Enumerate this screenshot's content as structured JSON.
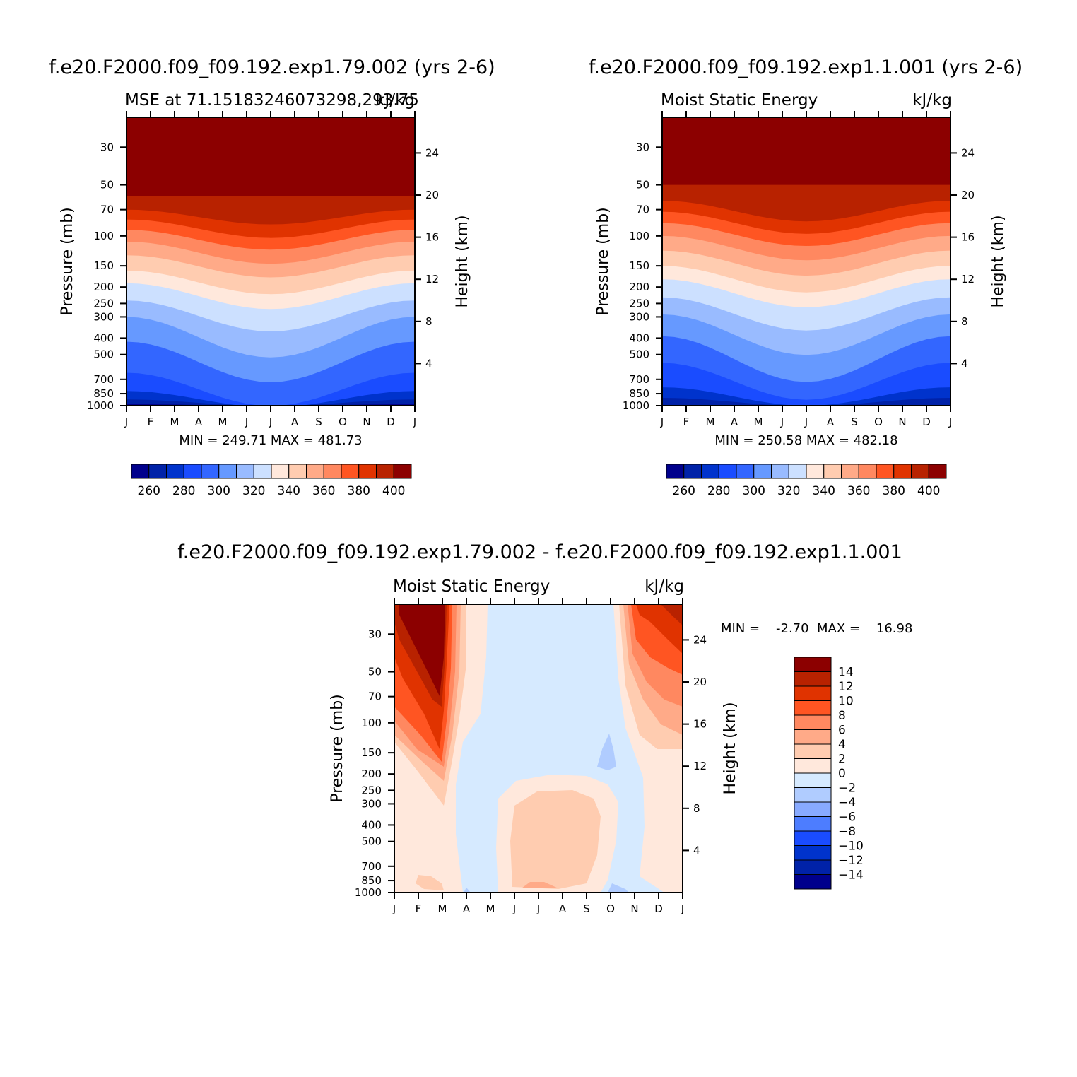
{
  "chart_data": [
    {
      "type": "contour",
      "id": "p1",
      "title": "f.e20.F2000.f09_f09.192.exp1.79.002 (yrs 2-6)",
      "subtitle_left": "MSE at 71.15183246073298,293.75",
      "subtitle_right": "kJ/kg",
      "xlabel": "",
      "ylabel": "Pressure (mb)",
      "ylabel_right": "Height (km)",
      "x_ticks": [
        "J",
        "F",
        "M",
        "A",
        "M",
        "J",
        "J",
        "A",
        "S",
        "O",
        "N",
        "D",
        "J"
      ],
      "y_ticks": [
        30,
        50,
        70,
        100,
        150,
        200,
        250,
        300,
        400,
        500,
        700,
        850,
        1000
      ],
      "y_right_ticks": [
        24,
        20,
        16,
        12,
        8,
        4
      ],
      "ylim": [
        1000,
        20
      ],
      "min_max_text": "MIN = 249.71  MAX = 481.73",
      "colorbar": {
        "orientation": "horizontal",
        "levels": [
          255,
          260,
          265,
          270,
          275,
          280,
          285,
          290,
          295,
          300,
          305,
          310,
          315,
          320,
          325,
          330,
          335,
          340,
          345,
          350,
          355,
          360,
          365,
          370,
          375,
          380,
          385,
          390,
          395,
          400,
          405
        ],
        "labels": [
          "260",
          "280",
          "300",
          "320",
          "340",
          "360",
          "380",
          "400"
        ],
        "colors": [
          "#00008c",
          "#0022a8",
          "#0033cc",
          "#1a4cff",
          "#3366ff",
          "#6699ff",
          "#99bbff",
          "#cce0ff",
          "#ffe8dc",
          "#ffccb0",
          "#ffaa88",
          "#ff8860",
          "#ff5522",
          "#e03300",
          "#b82200",
          "#8c0000"
        ]
      }
    },
    {
      "type": "contour",
      "id": "p2",
      "title": "f.e20.F2000.f09_f09.192.exp1.1.001 (yrs 2-6)",
      "subtitle_left": "Moist Static Energy",
      "subtitle_right": "kJ/kg",
      "ylabel": "Pressure (mb)",
      "ylabel_right": "Height (km)",
      "x_ticks": [
        "J",
        "F",
        "M",
        "A",
        "M",
        "J",
        "J",
        "A",
        "S",
        "O",
        "N",
        "D",
        "J"
      ],
      "y_ticks": [
        30,
        50,
        70,
        100,
        150,
        200,
        250,
        300,
        400,
        500,
        700,
        850,
        1000
      ],
      "y_right_ticks": [
        24,
        20,
        16,
        12,
        8,
        4
      ],
      "ylim": [
        1000,
        20
      ],
      "min_max_text": "MIN = 250.58  MAX = 482.18",
      "colorbar": {
        "orientation": "horizontal",
        "labels": [
          "260",
          "280",
          "300",
          "320",
          "340",
          "360",
          "380",
          "400"
        ],
        "colors": [
          "#00008c",
          "#0022a8",
          "#0033cc",
          "#1a4cff",
          "#3366ff",
          "#6699ff",
          "#99bbff",
          "#cce0ff",
          "#ffe8dc",
          "#ffccb0",
          "#ffaa88",
          "#ff8860",
          "#ff5522",
          "#e03300",
          "#b82200",
          "#8c0000"
        ]
      }
    },
    {
      "type": "contour",
      "id": "p3",
      "title": "f.e20.F2000.f09_f09.192.exp1.79.002 - f.e20.F2000.f09_f09.192.exp1.1.001",
      "subtitle_left": "Moist Static Energy",
      "subtitle_right": "kJ/kg",
      "ylabel": "Pressure (mb)",
      "ylabel_right": "Height (km)",
      "x_ticks": [
        "J",
        "F",
        "M",
        "A",
        "M",
        "J",
        "J",
        "A",
        "S",
        "O",
        "N",
        "D",
        "J"
      ],
      "y_ticks": [
        30,
        50,
        70,
        100,
        150,
        200,
        250,
        300,
        400,
        500,
        700,
        850,
        1000
      ],
      "y_right_ticks": [
        24,
        20,
        16,
        12,
        8,
        4
      ],
      "ylim": [
        1000,
        20
      ],
      "min_max_text": "MIN =    -2.70  MAX =    16.98",
      "colorbar": {
        "orientation": "vertical",
        "labels": [
          "14",
          "12",
          "10",
          "8",
          "6",
          "4",
          "2",
          "0",
          "-2",
          "-4",
          "-6",
          "-8",
          "-10",
          "-12",
          "-14"
        ],
        "colors": [
          "#8c0000",
          "#b82200",
          "#e03300",
          "#ff5522",
          "#ff8860",
          "#ffaa88",
          "#ffccb0",
          "#ffe8dc",
          "#d6eaff",
          "#b0ccff",
          "#88aaff",
          "#4d7dff",
          "#1a4cff",
          "#0033cc",
          "#0022a8",
          "#00008c"
        ]
      }
    }
  ]
}
